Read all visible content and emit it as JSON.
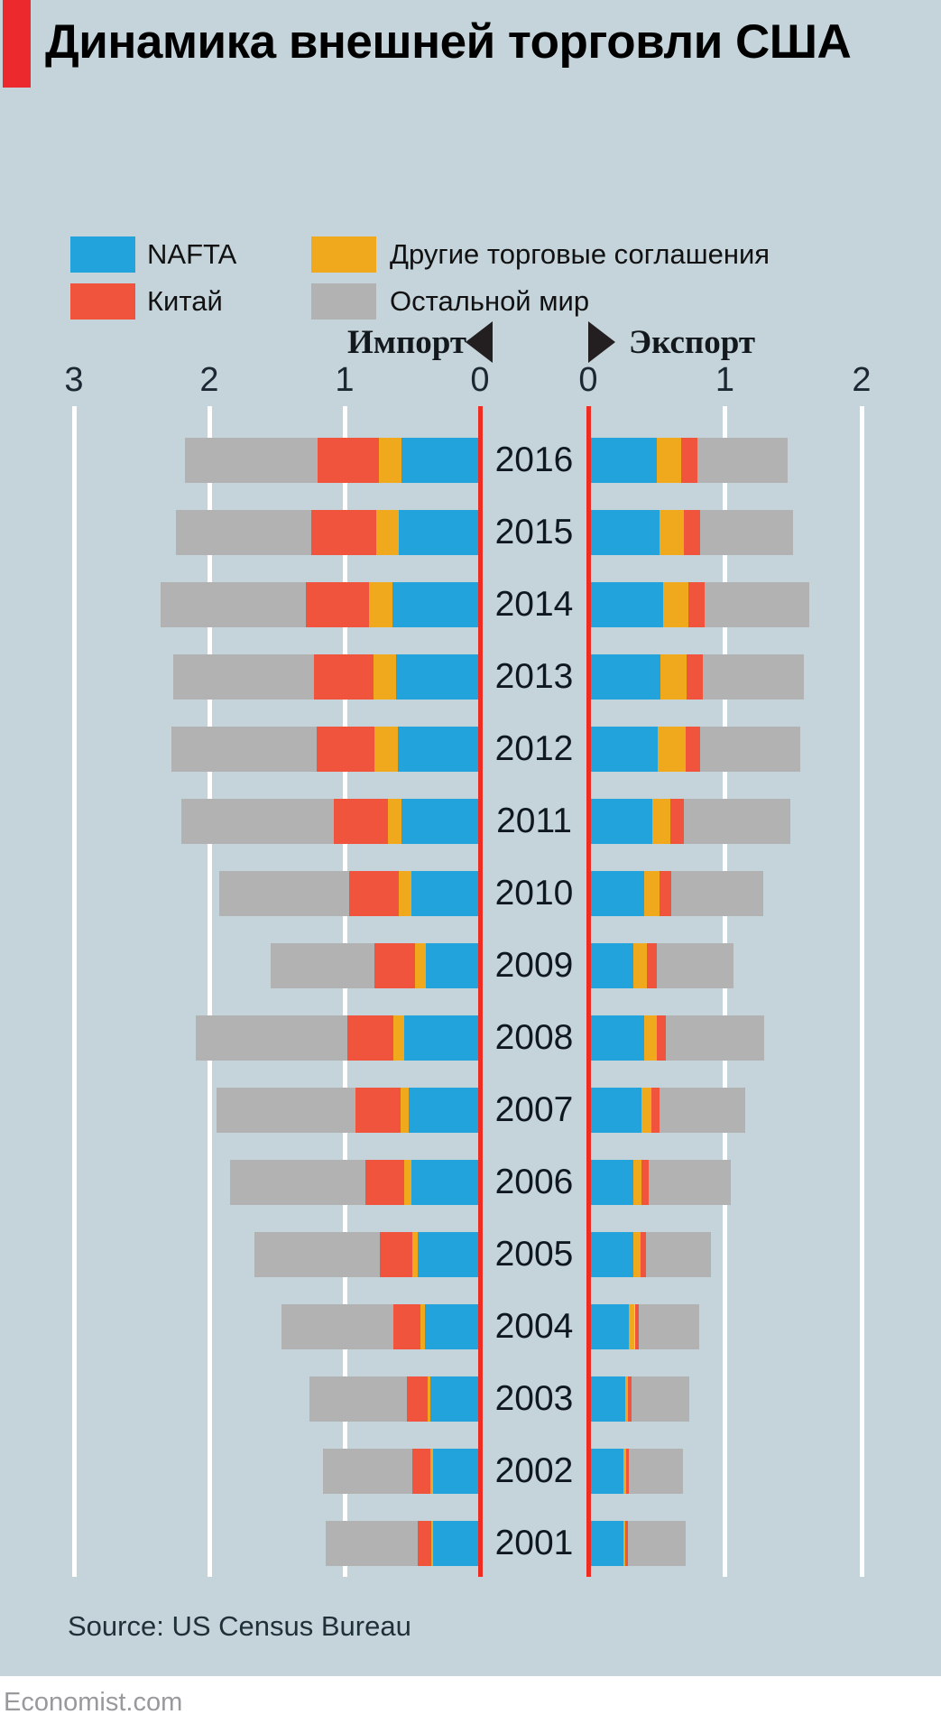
{
  "title": "Динамика внешней торговли США",
  "legend": [
    {
      "label": "NAFTA",
      "color": "#22a3db"
    },
    {
      "label": "Китай",
      "color": "#f1543c"
    },
    {
      "label": "Другие торговые соглашения",
      "color": "#f0a81c"
    },
    {
      "label": "Остальной мир",
      "color": "#b2b2b2"
    }
  ],
  "direction_labels": {
    "import": "Импорт",
    "export": "Экспорт"
  },
  "source": "Source: US Census Bureau",
  "footer": "Economist.com",
  "colors": {
    "nafta": "#22a3db",
    "china": "#f1543c",
    "other_agreements": "#f0a81c",
    "rest_of_world": "#b2b2b2",
    "zero_line": "#ee2c22",
    "gridline": "#ffffff",
    "background": "#c5d4db",
    "brand_red": "#ec2a2e"
  },
  "chart_data": {
    "type": "bar",
    "variant": "diverging-stacked-horizontal",
    "title": "Динамика внешней торговли США",
    "categories": [
      2016,
      2015,
      2014,
      2013,
      2012,
      2011,
      2010,
      2009,
      2008,
      2007,
      2006,
      2005,
      2004,
      2003,
      2002,
      2001
    ],
    "axis": {
      "import_ticks": [
        3,
        2,
        1,
        0
      ],
      "export_ticks": [
        0,
        1,
        2
      ],
      "import_range": [
        0,
        3
      ],
      "export_range": [
        0,
        2
      ],
      "grid": true
    },
    "stack_order_from_zero": [
      "NAFTA",
      "Другие торговые соглашения",
      "Китай",
      "Остальной мир"
    ],
    "import_series": [
      {
        "name": "NAFTA",
        "color_key": "nafta",
        "values": [
          0.58,
          0.6,
          0.65,
          0.62,
          0.61,
          0.58,
          0.51,
          0.4,
          0.56,
          0.53,
          0.51,
          0.46,
          0.41,
          0.37,
          0.35,
          0.35
        ]
      },
      {
        "name": "Другие торговые соглашения",
        "color_key": "other_agreements",
        "values": [
          0.17,
          0.17,
          0.17,
          0.17,
          0.17,
          0.1,
          0.09,
          0.08,
          0.08,
          0.06,
          0.05,
          0.04,
          0.03,
          0.02,
          0.02,
          0.01
        ]
      },
      {
        "name": "Китай",
        "color_key": "china",
        "values": [
          0.45,
          0.48,
          0.47,
          0.44,
          0.43,
          0.4,
          0.37,
          0.3,
          0.34,
          0.33,
          0.29,
          0.24,
          0.2,
          0.15,
          0.13,
          0.1
        ]
      },
      {
        "name": "Остальной мир",
        "color_key": "rest_of_world",
        "values": [
          0.98,
          1.0,
          1.07,
          1.04,
          1.07,
          1.13,
          0.96,
          0.77,
          1.12,
          1.03,
          1.0,
          0.93,
          0.83,
          0.72,
          0.66,
          0.68
        ]
      }
    ],
    "export_series": [
      {
        "name": "NAFTA",
        "color_key": "nafta",
        "values": [
          0.5,
          0.52,
          0.55,
          0.53,
          0.51,
          0.47,
          0.41,
          0.33,
          0.41,
          0.39,
          0.33,
          0.33,
          0.3,
          0.27,
          0.26,
          0.26
        ]
      },
      {
        "name": "Другие торговые соглашения",
        "color_key": "other_agreements",
        "values": [
          0.18,
          0.18,
          0.18,
          0.19,
          0.2,
          0.13,
          0.11,
          0.1,
          0.09,
          0.07,
          0.06,
          0.05,
          0.04,
          0.02,
          0.02,
          0.01
        ]
      },
      {
        "name": "Китай",
        "color_key": "china",
        "values": [
          0.12,
          0.12,
          0.12,
          0.12,
          0.11,
          0.1,
          0.09,
          0.07,
          0.07,
          0.06,
          0.05,
          0.04,
          0.03,
          0.03,
          0.02,
          0.02
        ]
      },
      {
        "name": "Остальной мир",
        "color_key": "rest_of_world",
        "values": [
          0.66,
          0.68,
          0.77,
          0.74,
          0.73,
          0.78,
          0.67,
          0.56,
          0.72,
          0.63,
          0.6,
          0.48,
          0.44,
          0.42,
          0.39,
          0.42
        ]
      }
    ]
  }
}
